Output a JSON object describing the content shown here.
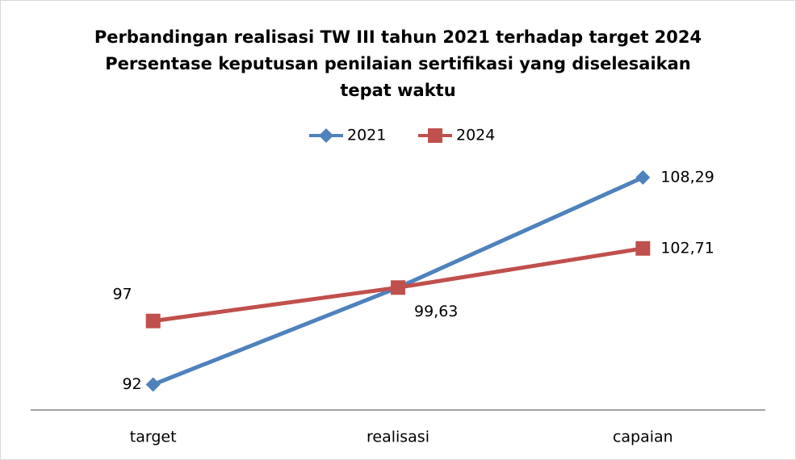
{
  "chart_data": {
    "type": "line",
    "title": [
      "Perbandingan realisasi TW III tahun 2021 terhadap target 2024",
      "Persentase keputusan penilaian sertifikasi yang diselesaikan",
      "tepat waktu"
    ],
    "categories": [
      "target",
      "realisasi",
      "capaian"
    ],
    "series": [
      {
        "name": "2021",
        "color": "#4f81bd",
        "marker": "diamond",
        "values": [
          92,
          99.63,
          108.29
        ],
        "value_labels": [
          "92",
          "99,63",
          "108,29"
        ]
      },
      {
        "name": "2024",
        "color": "#c0504d",
        "marker": "square",
        "values": [
          97,
          99.63,
          102.71
        ],
        "value_labels": [
          "97",
          null,
          "102,71"
        ]
      }
    ],
    "ylim": [
      90,
      110
    ],
    "legend": "top"
  }
}
